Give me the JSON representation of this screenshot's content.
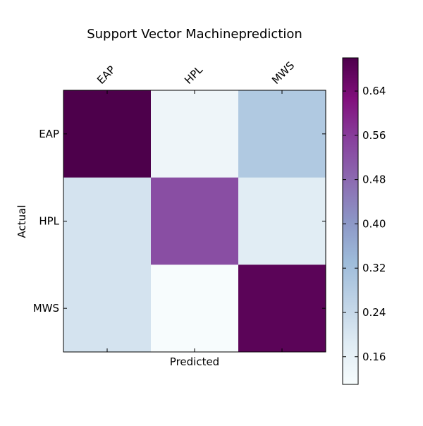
{
  "chart_data": {
    "type": "heatmap",
    "title": "Support Vector Machineprediction",
    "xlabel": "Predicted",
    "ylabel": "Actual",
    "x_categories": [
      "EAP",
      "HPL",
      "MWS"
    ],
    "y_categories": [
      "EAP",
      "HPL",
      "MWS"
    ],
    "values": [
      [
        0.7,
        0.14,
        0.29
      ],
      [
        0.21,
        0.53,
        0.18
      ],
      [
        0.21,
        0.11,
        0.68
      ]
    ],
    "colormap": "BuPu",
    "colorbar": {
      "range": [
        0.11,
        0.7
      ],
      "ticks": [
        0.16,
        0.24,
        0.32,
        0.4,
        0.48,
        0.56,
        0.64
      ],
      "tick_labels": [
        "0.16",
        "0.24",
        "0.32",
        "0.40",
        "0.48",
        "0.56",
        "0.64"
      ]
    },
    "x_tick_position": "top",
    "grid": false
  }
}
